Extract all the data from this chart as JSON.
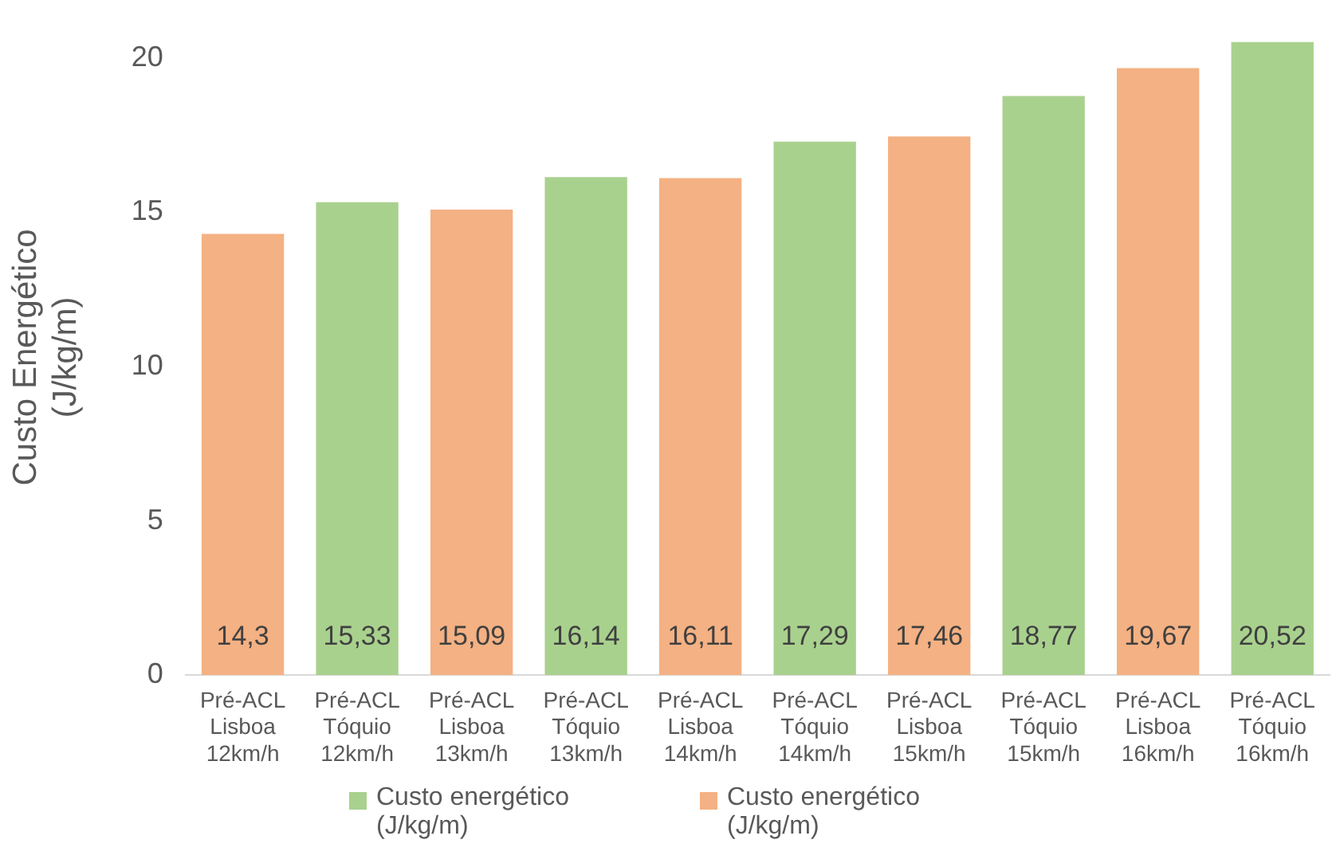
{
  "chart_data": {
    "type": "bar",
    "ylabel": "Custo Energético (J/kg/m)",
    "categories": [
      "Pré-ACL Lisboa 12km/h",
      "Pré-ACL Tóquio 12km/h",
      "Pré-ACL Lisboa 13km/h",
      "Pré-ACL Tóquio 13km/h",
      "Pré-ACL Lisboa 14km/h",
      "Pré-ACL Tóquio 14km/h",
      "Pré-ACL Lisboa 15km/h",
      "Pré-ACL Tóquio 15km/h",
      "Pré-ACL Lisboa 16km/h",
      "Pré-ACL Tóquio 16km/h"
    ],
    "series": [
      {
        "name": "Custo energético (J/kg/m)",
        "color": "#a9d18e",
        "values": [
          null,
          15.33,
          null,
          16.14,
          null,
          17.29,
          null,
          18.77,
          null,
          20.52
        ],
        "value_labels": [
          null,
          "15,33",
          null,
          "16,14",
          null,
          "17,29",
          null,
          "18,77",
          null,
          "20,52"
        ]
      },
      {
        "name": "Custo energético (J/kg/m)",
        "color": "#f4b183",
        "values": [
          14.3,
          null,
          15.09,
          null,
          16.11,
          null,
          17.46,
          null,
          19.67,
          null
        ],
        "value_labels": [
          "14,3",
          null,
          "15,09",
          null,
          "16,11",
          null,
          "17,46",
          null,
          "19,67",
          null
        ]
      }
    ],
    "ylim": [
      0,
      20.6
    ],
    "yticks": [
      0,
      5,
      10,
      15,
      20
    ],
    "grid": false,
    "legend": "bottom"
  }
}
